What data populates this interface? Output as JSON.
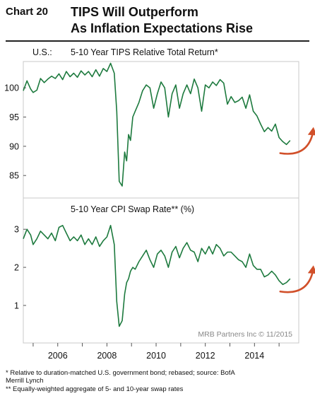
{
  "header": {
    "label": "Chart 20",
    "title_line1": "TIPS Will Outperform",
    "title_line2": "As Inflation Expectations Rise"
  },
  "colors": {
    "line": "#1d7a3e",
    "arrow": "#d1502a",
    "frame": "#c8c8c8"
  },
  "chart_data": [
    {
      "type": "line",
      "region": "U.S.:",
      "title": "5-10 Year TIPS Relative Total Return*",
      "ylim": [
        82,
        104.5
      ],
      "xlim": [
        2004.6,
        2015.8
      ],
      "yticks": [
        85,
        90,
        95,
        100
      ],
      "ytick_labels": [
        "85",
        "90",
        "95",
        "100"
      ],
      "scale": "linear",
      "grid": false,
      "arrow": "rising-curve-right-end",
      "series": [
        {
          "x": [
            2004.6,
            2004.75,
            2004.9,
            2005.0,
            2005.15,
            2005.3,
            2005.45,
            2005.6,
            2005.75,
            2005.9,
            2006.05,
            2006.2,
            2006.35,
            2006.5,
            2006.65,
            2006.8,
            2006.95,
            2007.1,
            2007.25,
            2007.4,
            2007.55,
            2007.7,
            2007.85,
            2008.0,
            2008.15,
            2008.3,
            2008.4,
            2008.5,
            2008.62,
            2008.72,
            2008.8,
            2008.88,
            2008.96,
            2009.05,
            2009.15,
            2009.3,
            2009.45,
            2009.6,
            2009.75,
            2009.9,
            2010.05,
            2010.2,
            2010.35,
            2010.5,
            2010.65,
            2010.8,
            2010.95,
            2011.1,
            2011.25,
            2011.4,
            2011.55,
            2011.7,
            2011.85,
            2012.0,
            2012.15,
            2012.3,
            2012.45,
            2012.6,
            2012.75,
            2012.9,
            2013.05,
            2013.2,
            2013.35,
            2013.5,
            2013.65,
            2013.8,
            2013.95,
            2014.1,
            2014.25,
            2014.4,
            2014.55,
            2014.7,
            2014.85,
            2015.0,
            2015.15,
            2015.3,
            2015.45
          ],
          "y": [
            99.5,
            101.2,
            99.8,
            99.2,
            99.6,
            101.6,
            100.9,
            101.5,
            102.0,
            101.6,
            102.4,
            101.4,
            102.8,
            101.9,
            102.5,
            101.8,
            102.9,
            102.2,
            102.8,
            101.9,
            103.1,
            102.0,
            103.3,
            102.8,
            104.2,
            102.5,
            96.0,
            84.0,
            83.2,
            89.0,
            87.5,
            92.0,
            91.0,
            95.0,
            96.0,
            97.5,
            99.5,
            100.5,
            100.0,
            96.5,
            99.0,
            101.0,
            100.0,
            95.0,
            99.0,
            100.5,
            96.5,
            99.0,
            100.5,
            99.0,
            101.5,
            100.0,
            96.0,
            100.5,
            100.0,
            101.0,
            100.4,
            101.4,
            100.8,
            97.2,
            98.5,
            97.5,
            97.8,
            98.4,
            96.5,
            98.8,
            96.0,
            95.2,
            93.8,
            92.5,
            93.2,
            92.6,
            93.8,
            91.5,
            90.8,
            90.3,
            91.0
          ]
        }
      ]
    },
    {
      "type": "line",
      "title": "5-10 Year CPI Swap Rate** (%)",
      "ylim": [
        0.2,
        3.45
      ],
      "xlim": [
        2004.6,
        2015.8
      ],
      "yticks": [
        1,
        2,
        3
      ],
      "ytick_labels": [
        "1",
        "2",
        "3"
      ],
      "scale": "linear",
      "grid": false,
      "arrow": "rising-curve-right-end",
      "series": [
        {
          "x": [
            2004.6,
            2004.75,
            2004.9,
            2005.0,
            2005.15,
            2005.3,
            2005.45,
            2005.6,
            2005.75,
            2005.9,
            2006.05,
            2006.2,
            2006.35,
            2006.5,
            2006.65,
            2006.8,
            2006.95,
            2007.1,
            2007.25,
            2007.4,
            2007.55,
            2007.7,
            2007.85,
            2008.0,
            2008.15,
            2008.3,
            2008.4,
            2008.5,
            2008.62,
            2008.72,
            2008.8,
            2008.88,
            2008.96,
            2009.05,
            2009.15,
            2009.3,
            2009.45,
            2009.6,
            2009.75,
            2009.9,
            2010.05,
            2010.2,
            2010.35,
            2010.5,
            2010.65,
            2010.8,
            2010.95,
            2011.1,
            2011.25,
            2011.4,
            2011.55,
            2011.7,
            2011.85,
            2012.0,
            2012.15,
            2012.3,
            2012.45,
            2012.6,
            2012.75,
            2012.9,
            2013.05,
            2013.2,
            2013.35,
            2013.5,
            2013.65,
            2013.8,
            2013.95,
            2014.1,
            2014.25,
            2014.4,
            2014.55,
            2014.7,
            2014.85,
            2015.0,
            2015.15,
            2015.3,
            2015.45
          ],
          "y": [
            2.75,
            3.0,
            2.85,
            2.6,
            2.75,
            2.95,
            2.85,
            2.75,
            2.9,
            2.7,
            3.05,
            3.1,
            2.9,
            2.7,
            2.8,
            2.7,
            2.85,
            2.6,
            2.75,
            2.6,
            2.8,
            2.55,
            2.7,
            2.8,
            3.1,
            2.6,
            1.1,
            0.45,
            0.6,
            1.3,
            1.6,
            1.7,
            1.9,
            2.0,
            1.95,
            2.15,
            2.3,
            2.45,
            2.2,
            2.0,
            2.35,
            2.45,
            2.3,
            2.0,
            2.4,
            2.55,
            2.25,
            2.5,
            2.65,
            2.45,
            2.4,
            2.15,
            2.5,
            2.35,
            2.55,
            2.35,
            2.6,
            2.5,
            2.3,
            2.4,
            2.4,
            2.3,
            2.2,
            2.15,
            2.0,
            2.35,
            2.05,
            1.95,
            1.95,
            1.75,
            1.8,
            1.9,
            1.8,
            1.65,
            1.55,
            1.6,
            1.7
          ]
        }
      ]
    }
  ],
  "x_axis": {
    "tick_years": [
      2005,
      2006,
      2007,
      2008,
      2009,
      2010,
      2011,
      2012,
      2013,
      2014,
      2015
    ],
    "label_years": [
      2006,
      2008,
      2010,
      2012,
      2014
    ],
    "labels": [
      "2006",
      "2008",
      "2010",
      "2012",
      "2014"
    ]
  },
  "source": "MRB Partners Inc © 11/2015",
  "footnotes": {
    "note1_line1": "*  Relative to duration-matched U.S. government bond; rebased; source: BofA",
    "note1_line2": "    Merrill Lynch",
    "note2": "** Equally-weighted aggregate of 5- and 10-year swap rates"
  }
}
